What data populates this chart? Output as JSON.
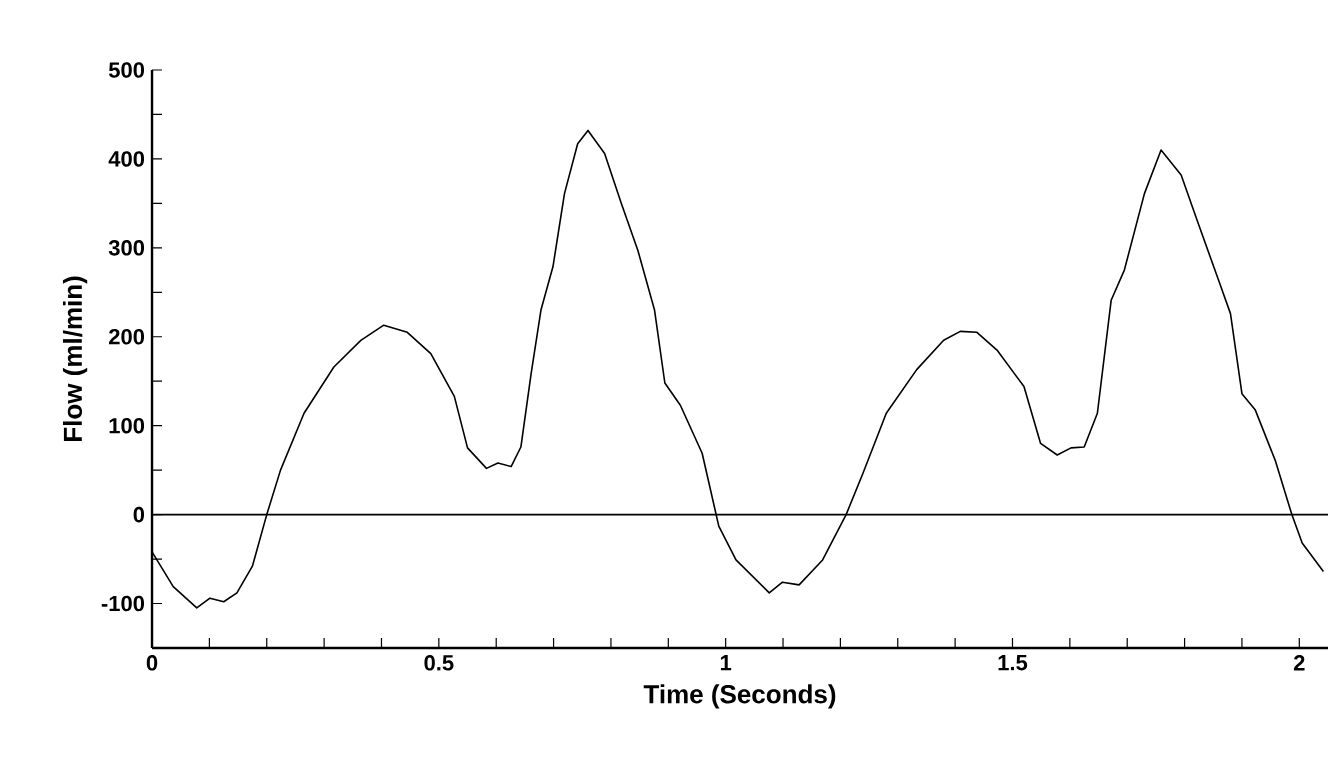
{
  "chart_data": {
    "type": "line",
    "xlabel": "Time (Seconds)",
    "ylabel": "Flow (ml/min)",
    "xlim": [
      0,
      2.05
    ],
    "ylim": [
      -150,
      500
    ],
    "xticks": [
      0,
      {
        "value": 0.1,
        "label": null
      },
      {
        "value": 0.2,
        "label": null
      },
      {
        "value": 0.3,
        "label": null
      },
      {
        "value": 0.4,
        "label": null
      },
      0.5,
      {
        "value": 0.6,
        "label": null
      },
      {
        "value": 0.7,
        "label": null
      },
      {
        "value": 0.8,
        "label": null
      },
      {
        "value": 0.9,
        "label": null
      },
      1,
      {
        "value": 1.1,
        "label": null
      },
      {
        "value": 1.2,
        "label": null
      },
      {
        "value": 1.3,
        "label": null
      },
      {
        "value": 1.4,
        "label": null
      },
      1.5,
      {
        "value": 1.6,
        "label": null
      },
      {
        "value": 1.7,
        "label": null
      },
      {
        "value": 1.8,
        "label": null
      },
      {
        "value": 1.9,
        "label": null
      },
      2
    ],
    "yticks": [
      {
        "value": -150,
        "label": null
      },
      -100,
      {
        "value": -50,
        "label": null
      },
      0,
      {
        "value": 50,
        "label": null
      },
      100,
      {
        "value": 150,
        "label": null
      },
      200,
      {
        "value": 250,
        "label": null
      },
      300,
      {
        "value": 350,
        "label": null
      },
      400,
      {
        "value": 450,
        "label": null
      },
      500
    ],
    "ref_lines": [
      {
        "axis": "y",
        "value": 0,
        "color": "#000000"
      }
    ],
    "series": [
      {
        "color": "#000000",
        "x": [
          0,
          0.037,
          0.078,
          0.101,
          0.125,
          0.148,
          0.175,
          0.2,
          0.224,
          0.265,
          0.317,
          0.364,
          0.404,
          0.445,
          0.486,
          0.527,
          0.55,
          0.583,
          0.603,
          0.626,
          0.643,
          0.661,
          0.678,
          0.699,
          0.719,
          0.742,
          0.76,
          0.789,
          0.818,
          0.847,
          0.876,
          0.894,
          0.921,
          0.959,
          0.988,
          1.018,
          1.076,
          1.099,
          1.128,
          1.169,
          1.21,
          1.239,
          1.28,
          1.333,
          1.38,
          1.409,
          1.438,
          1.473,
          1.52,
          1.549,
          1.578,
          1.602,
          1.625,
          1.648,
          1.672,
          1.695,
          1.73,
          1.759,
          1.794,
          1.824,
          1.859,
          1.88,
          1.9,
          1.923,
          1.958,
          1.987,
          2.005,
          2.042
        ],
        "values": [
          -42,
          -81,
          -105,
          -94,
          -98,
          -88,
          -58,
          0,
          50,
          114,
          166,
          196,
          213,
          205,
          181,
          133,
          75,
          52,
          58,
          54,
          76,
          159,
          230,
          279,
          361,
          417,
          432,
          406,
          350,
          297,
          230,
          148,
          123,
          69,
          -13,
          -51,
          -88,
          -76,
          -79,
          -51,
          0,
          46,
          114,
          163,
          196,
          206,
          205,
          185,
          144,
          80,
          67,
          75,
          76,
          114,
          241,
          275,
          361,
          410,
          382,
          327,
          264,
          226,
          136,
          118,
          61,
          0,
          -32,
          -64
        ]
      }
    ]
  }
}
